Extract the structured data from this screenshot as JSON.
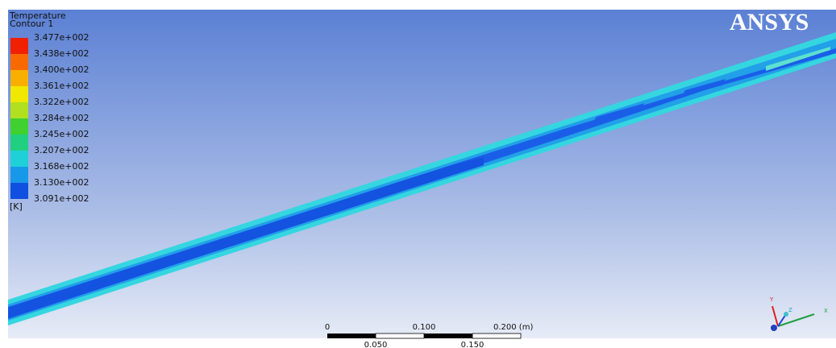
{
  "logo": "ANSYS",
  "legend": {
    "title": "Temperature",
    "subtitle": "Contour 1",
    "labels": [
      "3.477e+002",
      "3.438e+002",
      "3.400e+002",
      "3.361e+002",
      "3.322e+002",
      "3.284e+002",
      "3.245e+002",
      "3.207e+002",
      "3.168e+002",
      "3.130e+002",
      "3.091e+002"
    ],
    "unit": "[K]"
  },
  "scale_bar": {
    "top_labels": [
      "0",
      "0.100",
      "0.200 (m)"
    ],
    "bottom_labels": [
      "0.050",
      "0.150"
    ]
  },
  "triad": {
    "labels": [
      "Y",
      "Z",
      "X"
    ]
  }
}
